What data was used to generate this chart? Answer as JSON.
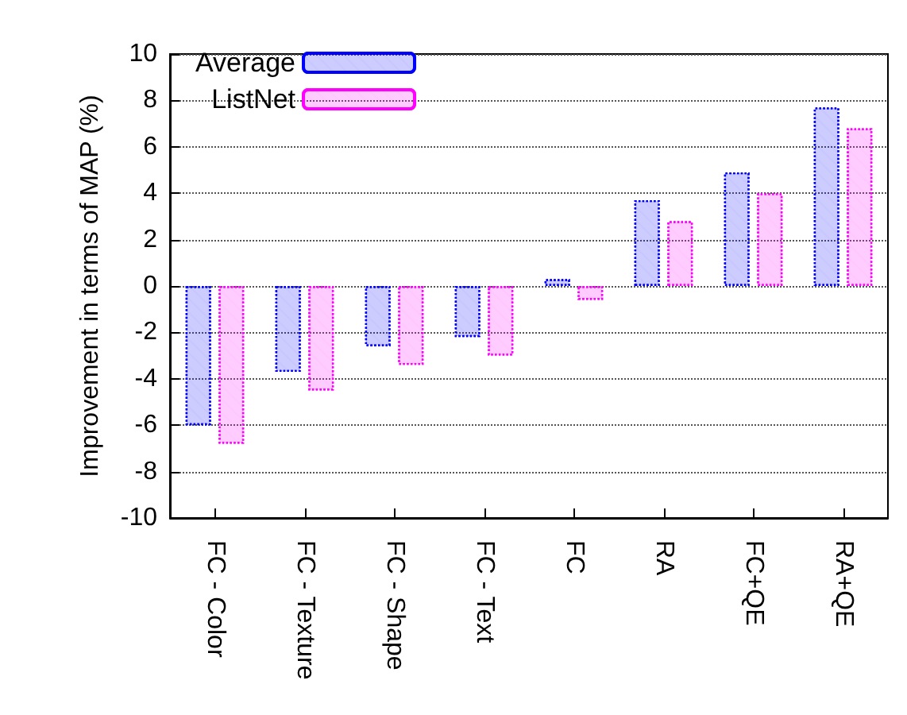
{
  "chart_data": {
    "type": "bar",
    "ylabel": "Improvement in terms of MAP (%)",
    "categories": [
      "FC - Color",
      "FC - Texture",
      "FC - Shape",
      "FC - Text",
      "FC",
      "RA",
      "FC+QE",
      "RA+QE"
    ],
    "series": [
      {
        "name": "Average",
        "color": "#0000ff",
        "values": [
          -6.0,
          -3.7,
          -2.6,
          -2.2,
          0.3,
          3.7,
          4.9,
          7.7
        ]
      },
      {
        "name": "ListNet",
        "color": "#ff00ff",
        "values": [
          -6.8,
          -4.5,
          -3.4,
          -3.0,
          -0.6,
          2.8,
          4.0,
          6.8
        ]
      }
    ],
    "ylim": [
      -10,
      10
    ],
    "yticks": [
      -10,
      -8,
      -6,
      -4,
      -2,
      0,
      2,
      4,
      6,
      8,
      10
    ],
    "grid": "y",
    "legend": "top left"
  }
}
